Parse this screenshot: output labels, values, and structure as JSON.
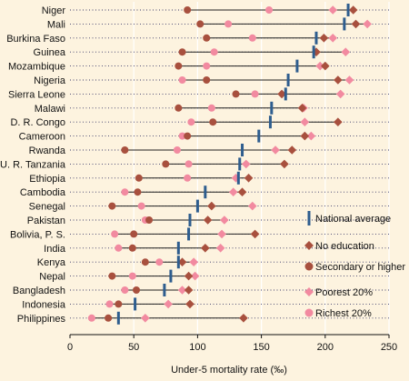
{
  "chart_data": {
    "type": "dot-range",
    "xlabel": "Under-5 mortality rate (‰)",
    "xlim": [
      0,
      250
    ],
    "xticks": [
      0,
      50,
      100,
      150,
      200,
      250
    ],
    "series_names": {
      "national": "National average",
      "no_edu": "No education",
      "secondary": "Secondary or higher",
      "poorest": "Poorest 20%",
      "richest": "Richest 20%"
    },
    "colors": {
      "national": "#2e5d8e",
      "no_edu": "#a8503e",
      "secondary": "#a8503e",
      "poorest": "#f28aa0",
      "richest": "#f28aa0",
      "line": "#222222",
      "dots": "#3a3a6a",
      "background": "#fdf3df"
    },
    "countries": [
      {
        "name": "Niger",
        "national": 218,
        "no_edu": 222,
        "secondary": 92,
        "poorest": 206,
        "richest": 156
      },
      {
        "name": "Mali",
        "national": 215,
        "no_edu": 224,
        "secondary": 102,
        "poorest": 233,
        "richest": 124
      },
      {
        "name": "Burkina Faso",
        "national": 193,
        "no_edu": 199,
        "secondary": 107,
        "poorest": 206,
        "richest": 143
      },
      {
        "name": "Guinea",
        "national": 191,
        "no_edu": 193,
        "secondary": 88,
        "poorest": 216,
        "richest": 113
      },
      {
        "name": "Mozambique",
        "national": 178,
        "no_edu": 200,
        "secondary": 85,
        "poorest": 196,
        "richest": 107
      },
      {
        "name": "Nigeria",
        "national": 171,
        "no_edu": 210,
        "secondary": 107,
        "poorest": 219,
        "richest": 88
      },
      {
        "name": "Sierra Leone",
        "national": 169,
        "no_edu": 166,
        "secondary": 130,
        "poorest": 212,
        "richest": 145
      },
      {
        "name": "Malawi",
        "national": 158,
        "no_edu": 182,
        "secondary": 85,
        "poorest": 183,
        "richest": 111
      },
      {
        "name": "D. R. Congo",
        "national": 157,
        "no_edu": 210,
        "secondary": 112,
        "poorest": 184,
        "richest": 95
      },
      {
        "name": "Cameroon",
        "national": 148,
        "no_edu": 184,
        "secondary": 92,
        "poorest": 189,
        "richest": 88
      },
      {
        "name": "Rwanda",
        "national": 135,
        "no_edu": 174,
        "secondary": 43,
        "poorest": 161,
        "richest": 84
      },
      {
        "name": "U. R. Tanzania",
        "national": 133,
        "no_edu": 168,
        "secondary": 75,
        "poorest": 138,
        "richest": 93
      },
      {
        "name": "Ethiopia",
        "national": 132,
        "no_edu": 140,
        "secondary": 54,
        "poorest": 130,
        "richest": 92
      },
      {
        "name": "Cambodia",
        "national": 106,
        "no_edu": 135,
        "secondary": 53,
        "poorest": 128,
        "richest": 43
      },
      {
        "name": "Senegal",
        "national": 100,
        "no_edu": 111,
        "secondary": 33,
        "poorest": 143,
        "richest": 56
      },
      {
        "name": "Pakistan",
        "national": 94,
        "no_edu": 108,
        "secondary": 62,
        "poorest": 121,
        "richest": 59
      },
      {
        "name": "Bolivia, P. S.",
        "national": 93,
        "no_edu": 145,
        "secondary": 50,
        "poorest": 119,
        "richest": 35
      },
      {
        "name": "India",
        "national": 85,
        "no_edu": 106,
        "secondary": 49,
        "poorest": 118,
        "richest": 38
      },
      {
        "name": "Kenya",
        "national": 85,
        "no_edu": 88,
        "secondary": 59,
        "poorest": 97,
        "richest": 70
      },
      {
        "name": "Nepal",
        "national": 79,
        "no_edu": 93,
        "secondary": 33,
        "poorest": 98,
        "richest": 49
      },
      {
        "name": "Bangladesh",
        "national": 74,
        "no_edu": 93,
        "secondary": 52,
        "poorest": 88,
        "richest": 43
      },
      {
        "name": "Indonesia",
        "national": 51,
        "no_edu": 94,
        "secondary": 38,
        "poorest": 77,
        "richest": 31
      },
      {
        "name": "Philippines",
        "national": 38,
        "no_edu": 136,
        "secondary": 30,
        "poorest": 59,
        "richest": 17
      }
    ]
  }
}
